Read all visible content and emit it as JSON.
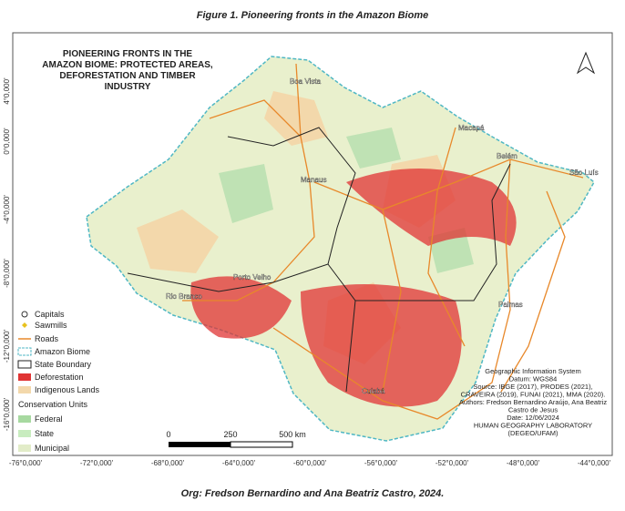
{
  "caption": "Figure 1. Pioneering fronts in the Amazon Biome",
  "map": {
    "title_lines": [
      "PIONEERING FRONTS IN THE",
      "AMAZON BIOME: PROTECTED AREAS,",
      "DEFORESTATION AND TIMBER",
      "INDUSTRY"
    ],
    "cities": [
      "Boa Vista",
      "Macapá",
      "Belém",
      "São Luís",
      "Manaus",
      "Porto Velho",
      "Rio Branco",
      "Palmas",
      "Cuiabá"
    ],
    "lat_labels": [
      "4°0,000'",
      "0°0,000'",
      "-4°0,000'",
      "-8°0,000'",
      "-12°0,000'",
      "-16°0,000'"
    ],
    "lon_labels": [
      "-76°0,000'",
      "-72°0,000'",
      "-68°0,000'",
      "-64°0,000'",
      "-60°0,000'",
      "-56°0,000'",
      "-52°0,000'",
      "-48°0,000'",
      "-44°0,000'"
    ],
    "legend": [
      "Capitals",
      "Sawmills",
      "Roads",
      "Amazon Biome",
      "State Boundary",
      "Deforestation",
      "Indigenous Lands"
    ],
    "conservation_title": "Conservation Units",
    "conservation_items": [
      "Federal",
      "State",
      "Municipal"
    ],
    "scale_bar": [
      "0",
      "250",
      "500 km"
    ],
    "credits": [
      "Geographic Information System",
      "Datum: WGS84",
      "Source: IBGE (2017), PRODES (2021),",
      "CRAVEIRA (2019), FUNAI (2021), MMA (2020).",
      "Authors: Fredson Bernardino Araújo, Ana Beatriz",
      "Castro de Jesus",
      "Date: 12/06/2024",
      "HUMAN GEOGRAPHY LABORATORY",
      "(DEGEO/UFAM)"
    ]
  },
  "footer": "Org: Fredson Bernardino and Ana Beatriz Castro, 2024."
}
